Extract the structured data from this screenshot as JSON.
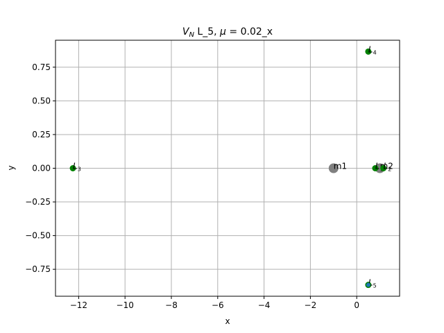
{
  "chart_data": {
    "type": "scatter",
    "title": {
      "main": "V",
      "main_sub": "N",
      "rest": " L_5, ",
      "mu_symbol": "μ",
      "rest2": " = 0.02_x"
    },
    "xlabel": "x",
    "ylabel": "y",
    "xlim": [
      -13.0,
      1.85
    ],
    "ylim": [
      -0.95,
      0.95
    ],
    "xticks": [
      -12,
      -10,
      -8,
      -6,
      -4,
      -2,
      0
    ],
    "xtick_labels": [
      "−12",
      "−10",
      "−8",
      "−6",
      "−4",
      "−2",
      "0"
    ],
    "yticks": [
      0.75,
      0.5,
      0.25,
      0.0,
      -0.25,
      -0.5,
      -0.75
    ],
    "ytick_labels": [
      "0.75",
      "0.50",
      "0.25",
      "0.00",
      "−0.25",
      "−0.50",
      "−0.75"
    ],
    "grid": true,
    "colors": {
      "lagrange_point": "#008000",
      "mass": "#808080",
      "current_point": "#1f77b4",
      "grid": "#b0b0b0"
    },
    "masses": [
      {
        "label": "m1",
        "x": -1.0,
        "y": 0.0
      },
      {
        "label": "m2",
        "x": 1.0,
        "y": 0.0
      }
    ],
    "lagrange_points": [
      {
        "base": "L",
        "sub": "1",
        "x": 0.8,
        "y": 0.0
      },
      {
        "base": "L",
        "sub": "2",
        "x": 1.15,
        "y": 0.0
      },
      {
        "base": "L",
        "sub": "3",
        "x": -12.25,
        "y": 0.0
      },
      {
        "base": "L",
        "sub": "4",
        "x": 0.5,
        "y": 0.866
      },
      {
        "base": "L",
        "sub": "5",
        "x": 0.5,
        "y": -0.866
      }
    ],
    "current_point": {
      "x": 0.5,
      "y": -0.866
    }
  }
}
